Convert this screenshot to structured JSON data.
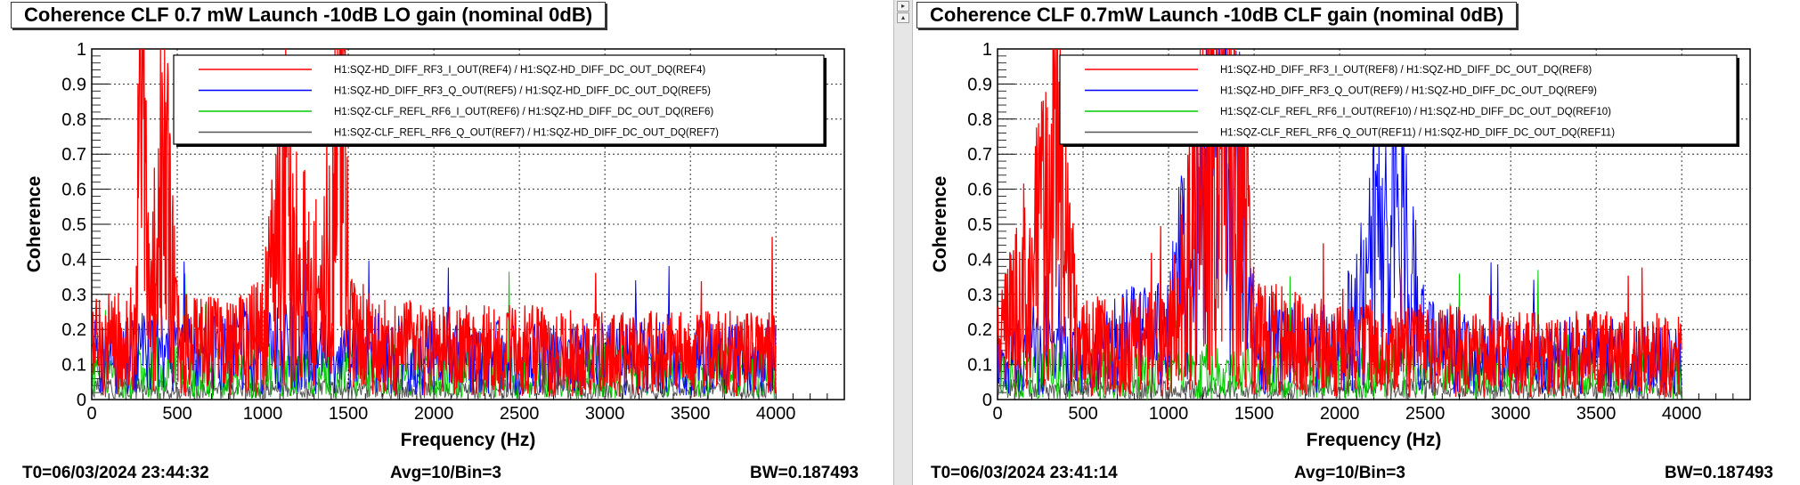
{
  "chart_data": [
    {
      "type": "line",
      "title": "Coherence CLF 0.7 mW Launch -10dB LO gain (nominal 0dB)",
      "xlabel": "Frequency (Hz)",
      "ylabel": "Coherence",
      "xlim": [
        0,
        4400
      ],
      "ylim": [
        0,
        1
      ],
      "grid": true,
      "x_ticks": [
        0,
        500,
        1000,
        1500,
        2000,
        2500,
        3000,
        3500,
        4000
      ],
      "y_ticks": [
        0,
        0.1,
        0.2,
        0.3,
        0.4,
        0.5,
        0.6,
        0.7,
        0.8,
        0.9,
        1
      ],
      "legend_position": "top-right",
      "series": [
        {
          "name": "H1:SQZ-HD_DIFF_RF3_I_OUT(REF4) / H1:SQZ-HD_DIFF_DC_OUT_DQ(REF4)",
          "color": "#ff0000",
          "x": [
            0,
            250,
            290,
            340,
            420,
            500,
            750,
            1000,
            1150,
            1200,
            1300,
            1400,
            1450,
            1480,
            1500,
            1750,
            2000,
            2500,
            3000,
            3500,
            4000
          ],
          "values": [
            0.15,
            0.17,
            0.87,
            0.2,
            0.65,
            0.16,
            0.15,
            0.18,
            0.6,
            0.4,
            0.3,
            0.45,
            0.85,
            0.9,
            0.18,
            0.15,
            0.14,
            0.14,
            0.13,
            0.13,
            0.13
          ]
        },
        {
          "name": "H1:SQZ-HD_DIFF_RF3_Q_OUT(REF5) / H1:SQZ-HD_DIFF_DC_OUT_DQ(REF5)",
          "color": "#0000ff",
          "x": [
            0,
            500,
            1000,
            1200,
            1500,
            2000,
            2500,
            3000,
            3500,
            4000
          ],
          "values": [
            0.12,
            0.13,
            0.14,
            0.16,
            0.14,
            0.12,
            0.12,
            0.12,
            0.12,
            0.12
          ]
        },
        {
          "name": "H1:SQZ-CLF_REFL_RF6_I_OUT(REF6) / H1:SQZ-HD_DIFF_DC_OUT_DQ(REF6)",
          "color": "#00cc00",
          "x": [
            0,
            500,
            1000,
            1500,
            2000,
            2500,
            3000,
            3500,
            4000
          ],
          "values": [
            0.08,
            0.08,
            0.08,
            0.08,
            0.08,
            0.08,
            0.08,
            0.08,
            0.08
          ]
        },
        {
          "name": "H1:SQZ-CLF_REFL_RF6_Q_OUT(REF7) / H1:SQZ-HD_DIFF_DC_OUT_DQ(REF7)",
          "color": "#555555",
          "x": [
            0,
            1000,
            2000,
            3000,
            4000
          ],
          "values": [
            0.03,
            0.03,
            0.03,
            0.03,
            0.03
          ]
        }
      ],
      "footer": {
        "t0": "T0=06/03/2024 23:44:32",
        "avg": "Avg=10/Bin=3",
        "bw": "BW=0.187493"
      }
    },
    {
      "type": "line",
      "title": "Coherence CLF 0.7mW Launch -10dB CLF gain (nominal 0dB)",
      "xlabel": "Frequency (Hz)",
      "ylabel": "Coherence",
      "xlim": [
        0,
        4400
      ],
      "ylim": [
        0,
        1
      ],
      "grid": true,
      "x_ticks": [
        0,
        500,
        1000,
        1500,
        2000,
        2500,
        3000,
        3500,
        4000
      ],
      "y_ticks": [
        0,
        0.1,
        0.2,
        0.3,
        0.4,
        0.5,
        0.6,
        0.7,
        0.8,
        0.9,
        1
      ],
      "legend_position": "top-right",
      "series": [
        {
          "name": "H1:SQZ-HD_DIFF_RF3_I_OUT(REF8) / H1:SQZ-HD_DIFF_DC_OUT_DQ(REF8)",
          "color": "#ff0000",
          "x": [
            0,
            300,
            350,
            400,
            500,
            1000,
            1150,
            1250,
            1300,
            1350,
            1450,
            1500,
            2000,
            2500,
            3000,
            3500,
            4000
          ],
          "values": [
            0.14,
            0.5,
            0.9,
            0.4,
            0.15,
            0.16,
            0.45,
            0.75,
            0.8,
            0.7,
            0.5,
            0.18,
            0.14,
            0.14,
            0.13,
            0.13,
            0.13
          ]
        },
        {
          "name": "H1:SQZ-HD_DIFF_RF3_Q_OUT(REF9) / H1:SQZ-HD_DIFF_DC_OUT_DQ(REF9)",
          "color": "#0000ff",
          "x": [
            0,
            500,
            1000,
            1150,
            1250,
            1300,
            1350,
            1450,
            1500,
            2000,
            2370,
            2500,
            3000,
            3500,
            4000
          ],
          "values": [
            0.12,
            0.13,
            0.2,
            0.5,
            0.75,
            0.8,
            0.7,
            0.5,
            0.16,
            0.14,
            0.6,
            0.15,
            0.12,
            0.12,
            0.12
          ]
        },
        {
          "name": "H1:SQZ-CLF_REFL_RF6_I_OUT(REF10) / H1:SQZ-HD_DIFF_DC_OUT_DQ(REF10)",
          "color": "#00cc00",
          "x": [
            0,
            500,
            1000,
            1500,
            2000,
            2500,
            3000,
            3500,
            4000
          ],
          "values": [
            0.08,
            0.08,
            0.08,
            0.08,
            0.08,
            0.08,
            0.08,
            0.08,
            0.08
          ]
        },
        {
          "name": "H1:SQZ-CLF_REFL_RF6_Q_OUT(REF11) / H1:SQZ-HD_DIFF_DC_OUT_DQ(REF11)",
          "color": "#555555",
          "x": [
            0,
            1000,
            2000,
            3000,
            4000
          ],
          "values": [
            0.03,
            0.03,
            0.03,
            0.03,
            0.03
          ]
        }
      ],
      "footer": {
        "t0": "T0=06/03/2024 23:41:14",
        "avg": "Avg=10/Bin=3",
        "bw": "BW=0.187493"
      }
    }
  ],
  "divider": {
    "scroll_up_icon": "triangle-right-icon",
    "scroll_down_icon": "triangle-up-icon"
  }
}
